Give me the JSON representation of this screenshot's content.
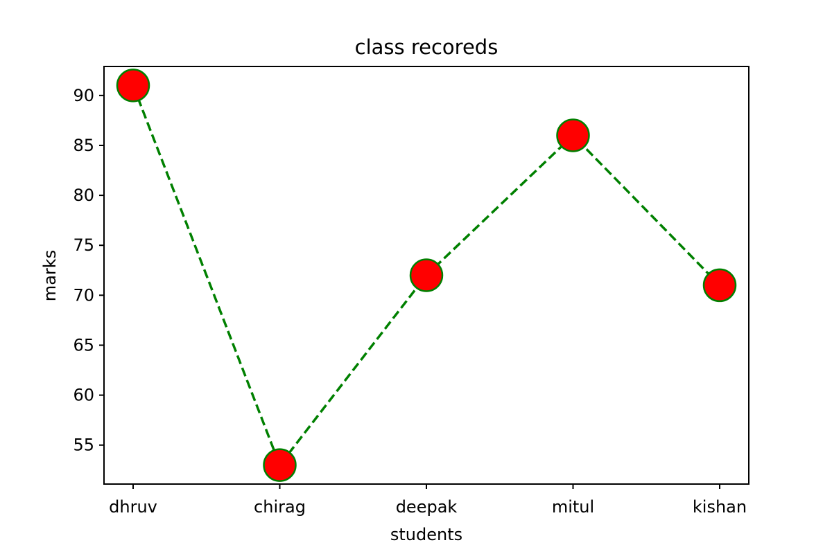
{
  "chart_data": {
    "type": "line",
    "title": "class recoreds",
    "xlabel": "students",
    "ylabel": "marks",
    "categories": [
      "dhruv",
      "chirag",
      "deepak",
      "mitul",
      "kishan"
    ],
    "values": [
      91,
      53,
      72,
      86,
      71
    ],
    "ylim": [
      51.1,
      92.9
    ],
    "yticks": [
      55,
      60,
      65,
      70,
      75,
      80,
      85,
      90
    ],
    "grid": false,
    "line_style": "dashed",
    "line_color": "#008000",
    "marker": "circle",
    "marker_face_color": "#ff0000",
    "marker_edge_color": "#008000"
  }
}
